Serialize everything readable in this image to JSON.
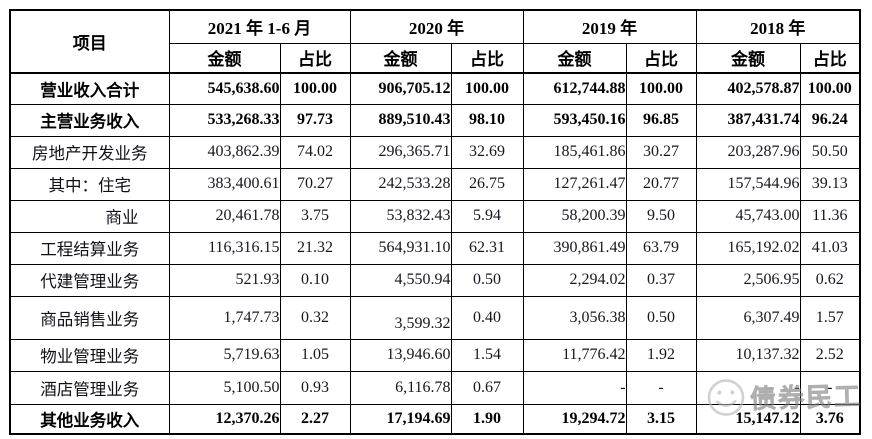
{
  "table": {
    "item_header": "项目",
    "amount_label": "金额",
    "ratio_label": "占比",
    "year_groups": [
      "2021 年 1-6 月",
      "2020 年",
      "2019 年",
      "2018 年"
    ],
    "rows": [
      {
        "label": "营业收入合计",
        "emphasis": true,
        "values": [
          "545,638.60",
          "100.00",
          "906,705.12",
          "100.00",
          "612,744.88",
          "100.00",
          "402,578.87",
          "100.00"
        ]
      },
      {
        "label": "主营业务收入",
        "emphasis": true,
        "values": [
          "533,268.33",
          "97.73",
          "889,510.43",
          "98.10",
          "593,450.16",
          "96.85",
          "387,431.74",
          "96.24"
        ]
      },
      {
        "label": "房地产开发业务",
        "values": [
          "403,862.39",
          "74.02",
          "296,365.71",
          "32.69",
          "185,461.86",
          "30.27",
          "203,287.96",
          "50.50"
        ]
      },
      {
        "label": "其中：住宅",
        "values": [
          "383,400.61",
          "70.27",
          "242,533.28",
          "26.75",
          "127,261.47",
          "20.77",
          "157,544.96",
          "39.13"
        ]
      },
      {
        "label": "商业",
        "indent": true,
        "values": [
          "20,461.78",
          "3.75",
          "53,832.43",
          "5.94",
          "58,200.39",
          "9.50",
          "45,743.00",
          "11.36"
        ]
      },
      {
        "label": "工程结算业务",
        "values": [
          "116,316.15",
          "21.32",
          "564,931.10",
          "62.31",
          "390,861.49",
          "63.79",
          "165,192.02",
          "41.03"
        ]
      },
      {
        "label": "代建管理业务",
        "values": [
          "521.93",
          "0.10",
          "4,550.94",
          "0.50",
          "2,294.02",
          "0.37",
          "2,506.95",
          "0.62"
        ]
      },
      {
        "label": "商品销售业务",
        "values": [
          "1,747.73",
          "0.32",
          "3,599.32",
          "0.40",
          "3,056.38",
          "0.50",
          "6,307.49",
          "1.57"
        ]
      },
      {
        "label": "物业管理业务",
        "values": [
          "5,719.63",
          "1.05",
          "13,946.60",
          "1.54",
          "11,776.42",
          "1.92",
          "10,137.32",
          "2.52"
        ]
      },
      {
        "label": "酒店管理业务",
        "values": [
          "5,100.50",
          "0.93",
          "6,116.78",
          "0.67",
          "-",
          "-",
          "-",
          "-"
        ]
      },
      {
        "label": "其他业务收入",
        "emphasis": true,
        "values": [
          "12,370.26",
          "2.27",
          "17,194.69",
          "1.90",
          "19,294.72",
          "3.15",
          "15,147.12",
          "3.76"
        ]
      }
    ]
  },
  "watermark": {
    "text": "债券民工"
  },
  "colors": {
    "border": "#000000",
    "text": "#161620",
    "watermark_gray": "#8d8d8d",
    "background": "#ffffff"
  }
}
